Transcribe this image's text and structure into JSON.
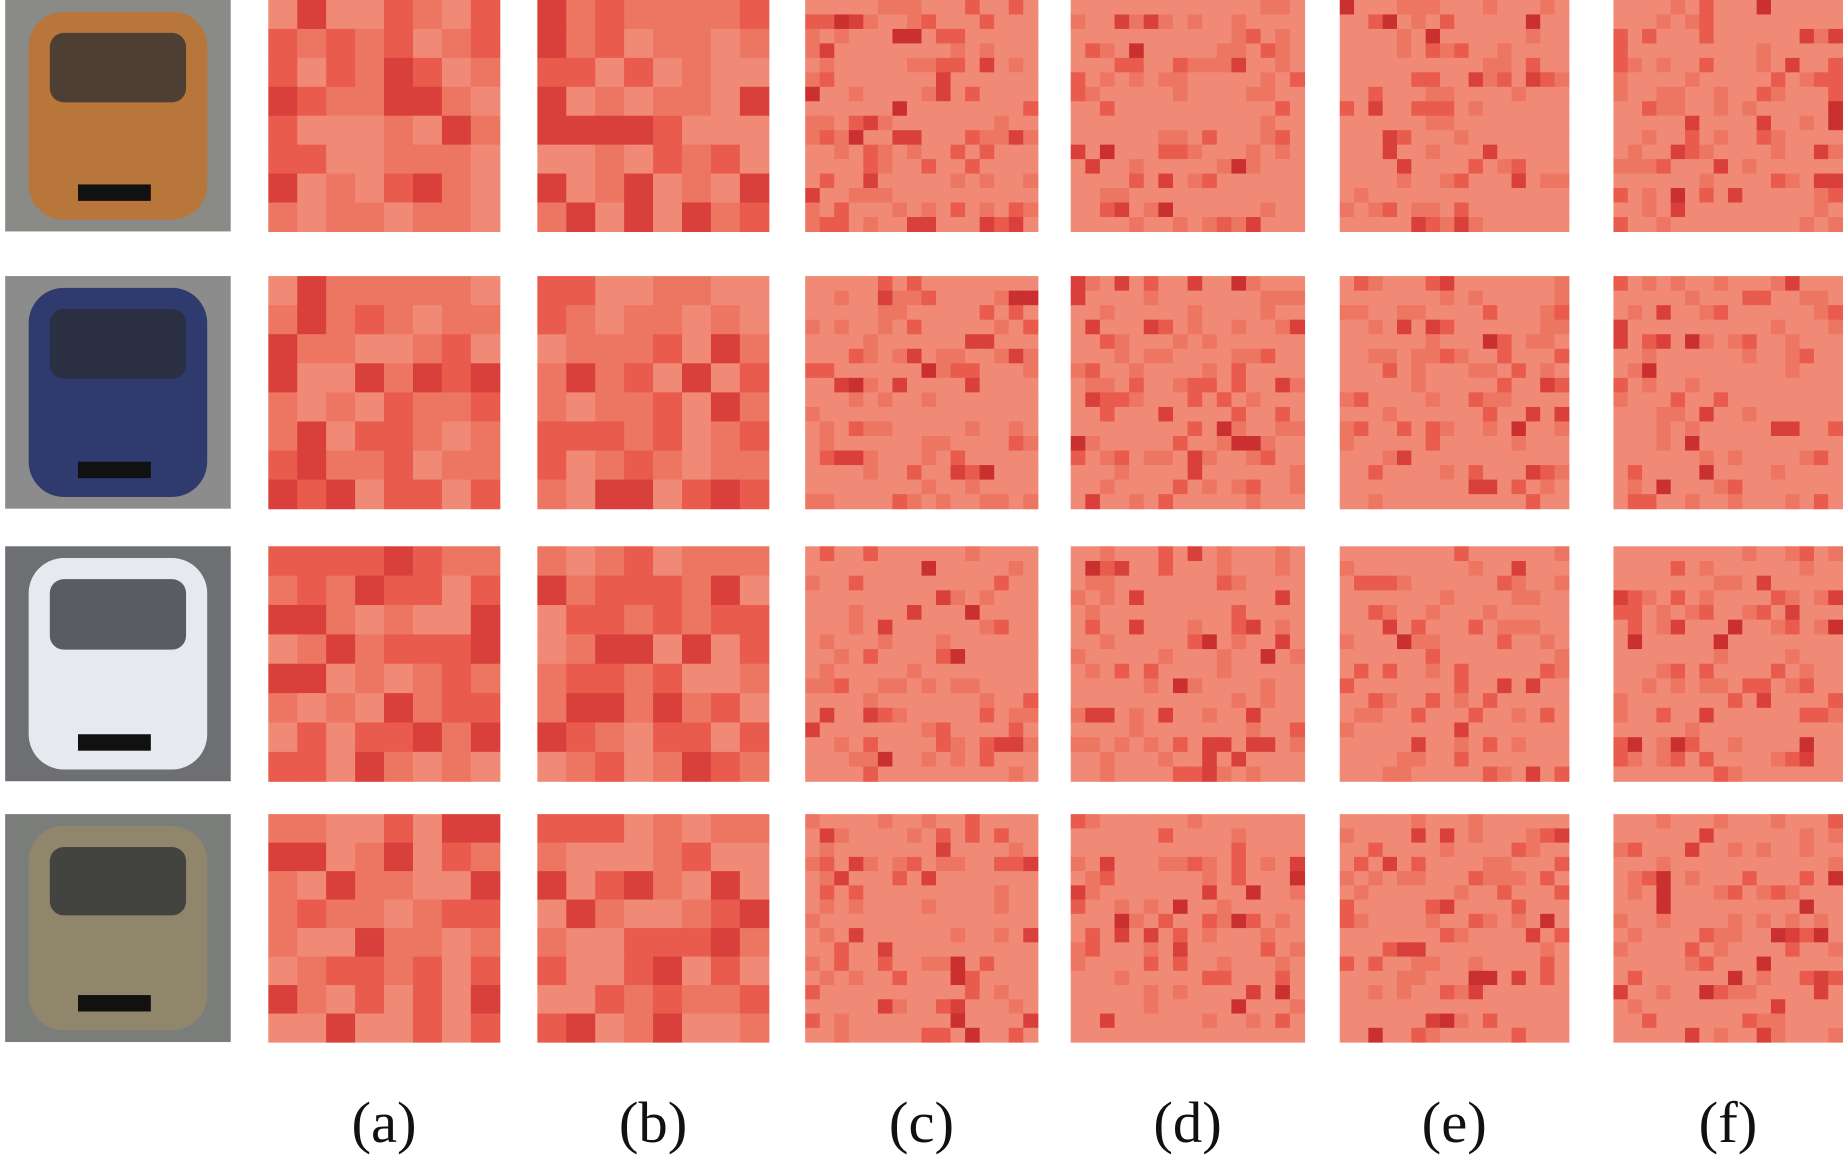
{
  "figure": {
    "labels": [
      "(a)",
      "(b)",
      "(c)",
      "(d)",
      "(e)",
      "(f)"
    ]
  }
}
